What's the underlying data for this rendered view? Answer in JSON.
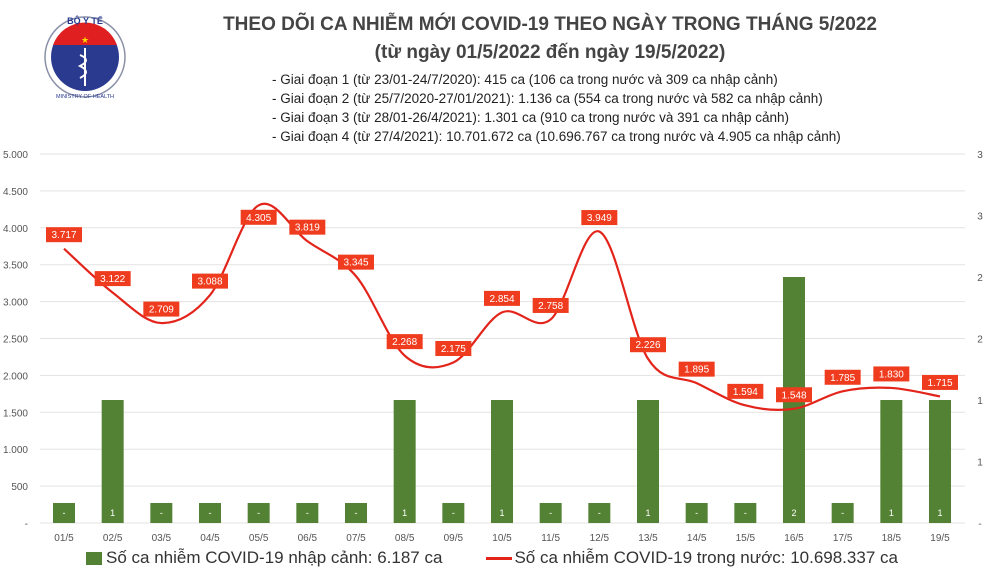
{
  "logo": {
    "text_top": "BỘ Y TẾ",
    "text_bottom": "MINISTRY OF HEALTH"
  },
  "title_line1": "THEO DÕI CA NHIỄM MỚI COVID-19 THEO NGÀY TRONG THÁNG 5/2022",
  "title_line2": "(từ ngày 01/5/2022 đến ngày 19/5/2022)",
  "notes": [
    "- Giai đoạn 1 (từ 23/01-24/7/2020): 415 ca (106 ca trong nước và 309 ca nhập cảnh)",
    "- Giai đoạn 2 (từ 25/7/2020-27/01/2021): 1.136 ca (554 ca trong nước và 582 ca nhập cảnh)",
    "- Giai đoạn 3 (từ 28/01-26/4/2021): 1.301 ca (910 ca trong nước và 391 ca nhập cảnh)",
    "- Giai đoạn 4 (từ 27/4/2021): 10.701.672 ca (10.696.767 ca trong nước và 4.905 ca nhập cảnh)"
  ],
  "legend": {
    "bar_label": "Số ca nhiễm COVID-19 nhập cảnh: 6.187 ca",
    "line_label": "Số ca nhiễm COVID-19 trong nước: 10.698.337 ca"
  },
  "chart_data": {
    "type": "bar+line",
    "categories": [
      "01/5",
      "02/5",
      "03/5",
      "04/5",
      "05/5",
      "06/5",
      "07/5",
      "08/5",
      "09/5",
      "10/5",
      "11/5",
      "12/5",
      "13/5",
      "14/5",
      "15/5",
      "16/5",
      "17/5",
      "18/5",
      "19/5"
    ],
    "series": [
      {
        "name": "Số ca nhiễm COVID-19 nhập cảnh: 6.187 ca",
        "type": "bar",
        "axis": "right",
        "color": "#548235",
        "values": [
          0,
          1,
          0,
          0,
          0,
          0,
          0,
          1,
          0,
          1,
          0,
          0,
          1,
          0,
          0,
          2,
          0,
          1,
          1
        ],
        "labels": [
          "-",
          "1",
          "-",
          "-",
          "-",
          "-",
          "-",
          "1",
          "-",
          "1",
          "-",
          "-",
          "1",
          "-",
          "-",
          "2",
          "-",
          "1",
          "1"
        ]
      },
      {
        "name": "Số ca nhiễm COVID-19 trong nước: 10.698.337 ca",
        "type": "line",
        "axis": "left",
        "color": "#e3241b",
        "values": [
          3717,
          3122,
          2709,
          3088,
          4305,
          3819,
          3345,
          2268,
          2175,
          2854,
          2758,
          3949,
          2226,
          1895,
          1594,
          1548,
          1785,
          1830,
          1715
        ],
        "labels": [
          "3.717",
          "3.122",
          "2.709",
          "3.088",
          "4.305",
          "3.819",
          "3.345",
          "2.268",
          "2.175",
          "2.854",
          "2.758",
          "3.949",
          "2.226",
          "1.895",
          "1.594",
          "1.548",
          "1.785",
          "1.830",
          "1.715"
        ]
      }
    ],
    "left_axis": {
      "range": [
        0,
        5000
      ],
      "ticks": [
        "-",
        "500",
        "1.000",
        "1.500",
        "2.000",
        "2.500",
        "3.000",
        "3.500",
        "4.000",
        "4.500",
        "5.000"
      ]
    },
    "right_axis": {
      "range": [
        0,
        3
      ],
      "ticks": [
        "-",
        "1",
        "1",
        "2",
        "2",
        "3",
        "3"
      ]
    },
    "grid": true,
    "legend_position": "bottom"
  }
}
